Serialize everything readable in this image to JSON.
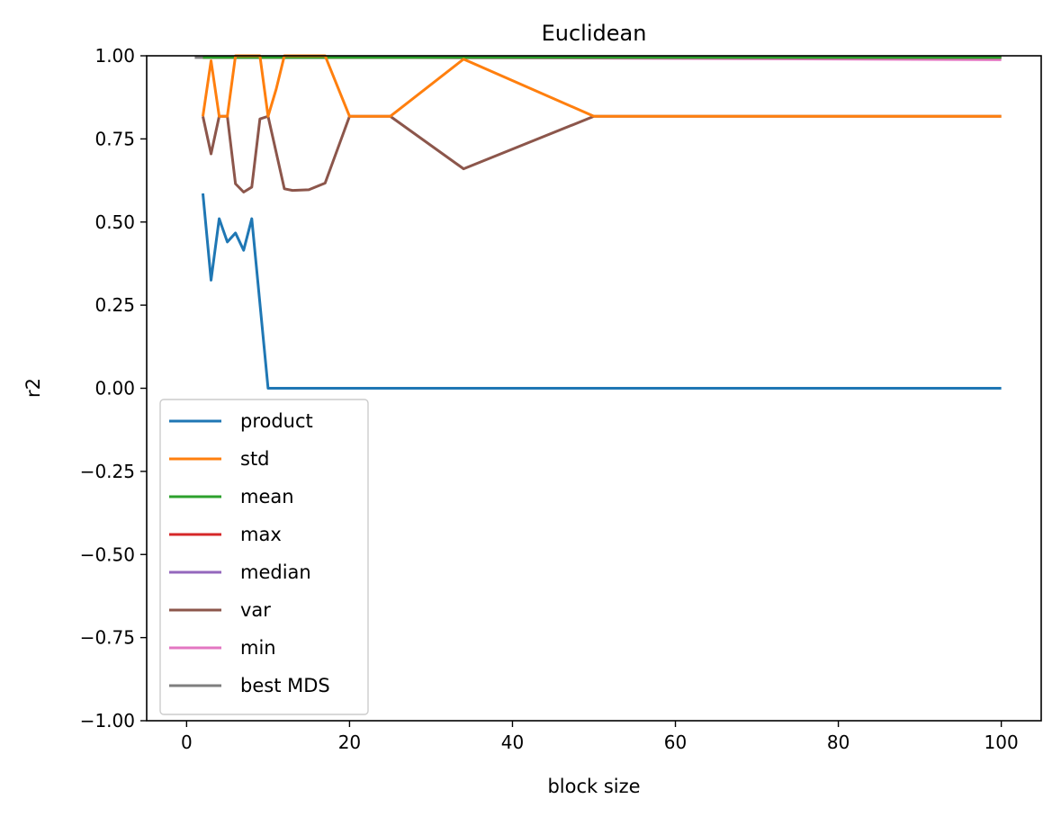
{
  "chart_data": {
    "type": "line",
    "title": "Euclidean",
    "xlabel": "block size",
    "ylabel": "r2",
    "xlim": [
      -4.9,
      104.9
    ],
    "ylim": [
      -1.0,
      1.0
    ],
    "xticks": [
      0,
      20,
      40,
      60,
      80,
      100
    ],
    "yticks": [
      -1.0,
      -0.75,
      -0.5,
      -0.25,
      0.0,
      0.25,
      0.5,
      0.75,
      1.0
    ],
    "ytick_labels": [
      "−1.00",
      "−0.75",
      "−0.50",
      "−0.25",
      "0.00",
      "0.25",
      "0.50",
      "0.75",
      "1.00"
    ],
    "xtick_labels": [
      "0",
      "20",
      "40",
      "60",
      "80",
      "100"
    ],
    "grid": false,
    "legend_position": "lower-left",
    "series": [
      {
        "name": "product",
        "color": "#1f77b4",
        "x": [
          2,
          3,
          4,
          5,
          6,
          7,
          8,
          10,
          12,
          20,
          25,
          34,
          50,
          100
        ],
        "y": [
          0.586,
          0.325,
          0.51,
          0.44,
          0.467,
          0.415,
          0.51,
          0.0,
          0.0,
          0.0,
          0.0,
          0.0,
          0.0,
          0.0
        ]
      },
      {
        "name": "std",
        "color": "#ff7f0e",
        "x": [
          2,
          3,
          4,
          5,
          6,
          7,
          8,
          9,
          10,
          11,
          12,
          13,
          15,
          17,
          20,
          25,
          34,
          50,
          100
        ],
        "y": [
          0.818,
          0.985,
          0.818,
          0.818,
          1.0,
          1.0,
          1.0,
          1.0,
          0.818,
          0.9,
          1.0,
          1.0,
          1.0,
          1.0,
          0.818,
          0.818,
          0.99,
          0.818,
          0.818
        ]
      },
      {
        "name": "mean",
        "color": "#2ca02c",
        "x": [
          2,
          3,
          4,
          5,
          6,
          7,
          8,
          10,
          12,
          20,
          25,
          34,
          50,
          100
        ],
        "y": [
          0.995,
          0.995,
          0.995,
          0.995,
          0.995,
          0.995,
          0.995,
          0.995,
          0.995,
          0.995,
          0.995,
          0.995,
          0.995,
          0.995
        ]
      },
      {
        "name": "max",
        "color": "#d62728",
        "x": [
          2,
          3,
          4,
          5,
          6,
          7,
          8,
          10,
          12,
          20,
          25,
          34,
          50,
          100
        ],
        "y": [
          0.995,
          0.995,
          0.995,
          0.995,
          0.995,
          0.995,
          0.995,
          0.995,
          0.995,
          0.995,
          0.995,
          0.995,
          0.995,
          0.995
        ]
      },
      {
        "name": "median",
        "color": "#9467bd",
        "x": [
          2,
          3,
          4,
          5,
          6,
          7,
          8,
          10,
          12,
          20,
          25,
          34,
          50,
          100
        ],
        "y": [
          0.995,
          0.995,
          0.995,
          0.995,
          0.995,
          0.995,
          0.995,
          0.995,
          0.995,
          0.995,
          0.995,
          0.995,
          0.995,
          0.995
        ]
      },
      {
        "name": "var",
        "color": "#8c564b",
        "x": [
          2,
          3,
          4,
          5,
          6,
          7,
          8,
          9,
          10,
          12,
          13,
          15,
          17,
          20,
          25,
          34,
          50,
          100
        ],
        "y": [
          0.818,
          0.705,
          0.818,
          0.818,
          0.615,
          0.59,
          0.605,
          0.81,
          0.818,
          0.6,
          0.595,
          0.597,
          0.617,
          0.818,
          0.818,
          0.66,
          0.818,
          0.818
        ]
      },
      {
        "name": "min",
        "color": "#e377c2",
        "x": [
          2,
          3,
          4,
          5,
          6,
          7,
          8,
          10,
          12,
          20,
          25,
          34,
          50,
          100
        ],
        "y": [
          0.995,
          0.995,
          0.995,
          0.995,
          0.995,
          0.995,
          0.995,
          0.995,
          0.995,
          0.995,
          0.995,
          0.994,
          0.993,
          0.988
        ]
      },
      {
        "name": "best MDS",
        "color": "#7f7f7f",
        "x": [
          1,
          100
        ],
        "y": [
          0.995,
          0.995
        ]
      }
    ]
  }
}
